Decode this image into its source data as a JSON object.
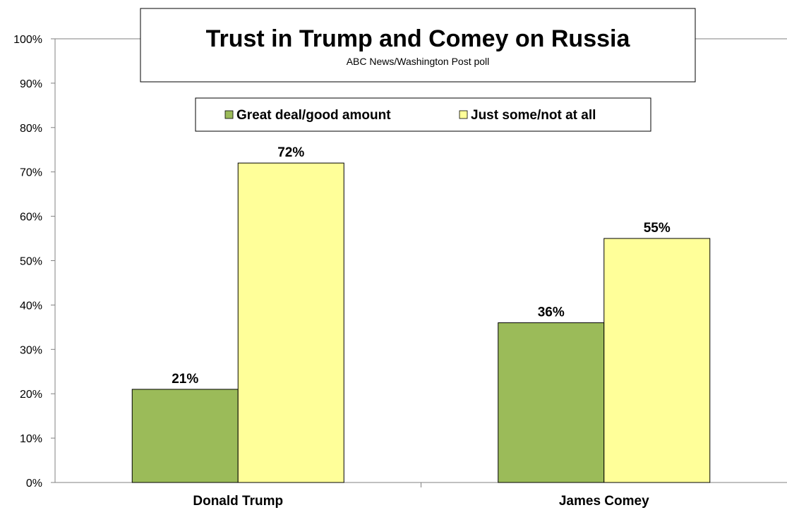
{
  "chart_data": {
    "type": "bar",
    "title": "Trust in Trump and Comey on Russia",
    "subtitle": "ABC News/Washington  Post poll",
    "categories": [
      "Donald Trump",
      "James Comey"
    ],
    "series": [
      {
        "name": "Great deal/good amount",
        "values": [
          21,
          36
        ],
        "labels": [
          "21%",
          "36%"
        ],
        "color": "#9bbb59"
      },
      {
        "name": "Just some/not at all",
        "values": [
          72,
          55
        ],
        "labels": [
          "72%",
          "55%"
        ],
        "color": "#ffff99"
      }
    ],
    "ylim": [
      0,
      100
    ],
    "yticks": [
      "0%",
      "10%",
      "20%",
      "30%",
      "40%",
      "50%",
      "60%",
      "70%",
      "80%",
      "90%",
      "100%"
    ],
    "legend_position": "top-center",
    "grid": false
  }
}
